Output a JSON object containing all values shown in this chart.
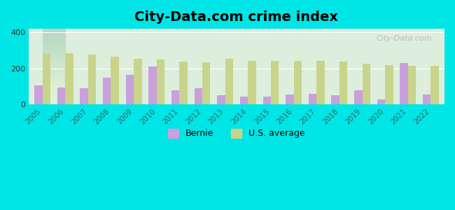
{
  "title": "City-Data.com crime index",
  "years": [
    2005,
    2006,
    2007,
    2008,
    2009,
    2010,
    2011,
    2012,
    2013,
    2014,
    2015,
    2016,
    2017,
    2018,
    2019,
    2020,
    2021,
    2022
  ],
  "bernie": [
    105,
    95,
    90,
    150,
    165,
    210,
    80,
    90,
    50,
    45,
    45,
    55,
    58,
    52,
    80,
    28,
    230,
    55
  ],
  "us_avg": [
    285,
    285,
    275,
    265,
    255,
    248,
    238,
    235,
    252,
    242,
    242,
    242,
    240,
    237,
    228,
    220,
    215,
    215
  ],
  "bernie_color": "#c9a0dc",
  "us_avg_color": "#c8d48a",
  "bg_outer": "#00e5e5",
  "bg_chart_top": "#e8f0e0",
  "bg_chart_bottom": "#e0f0e8",
  "ylim": [
    0,
    420
  ],
  "yticks": [
    0,
    200,
    400
  ],
  "bar_width": 0.35,
  "title_fontsize": 14,
  "tick_fontsize": 7.5,
  "legend_fontsize": 9,
  "watermark_text": "City-Data.com",
  "watermark_color": "#aaaaaa"
}
